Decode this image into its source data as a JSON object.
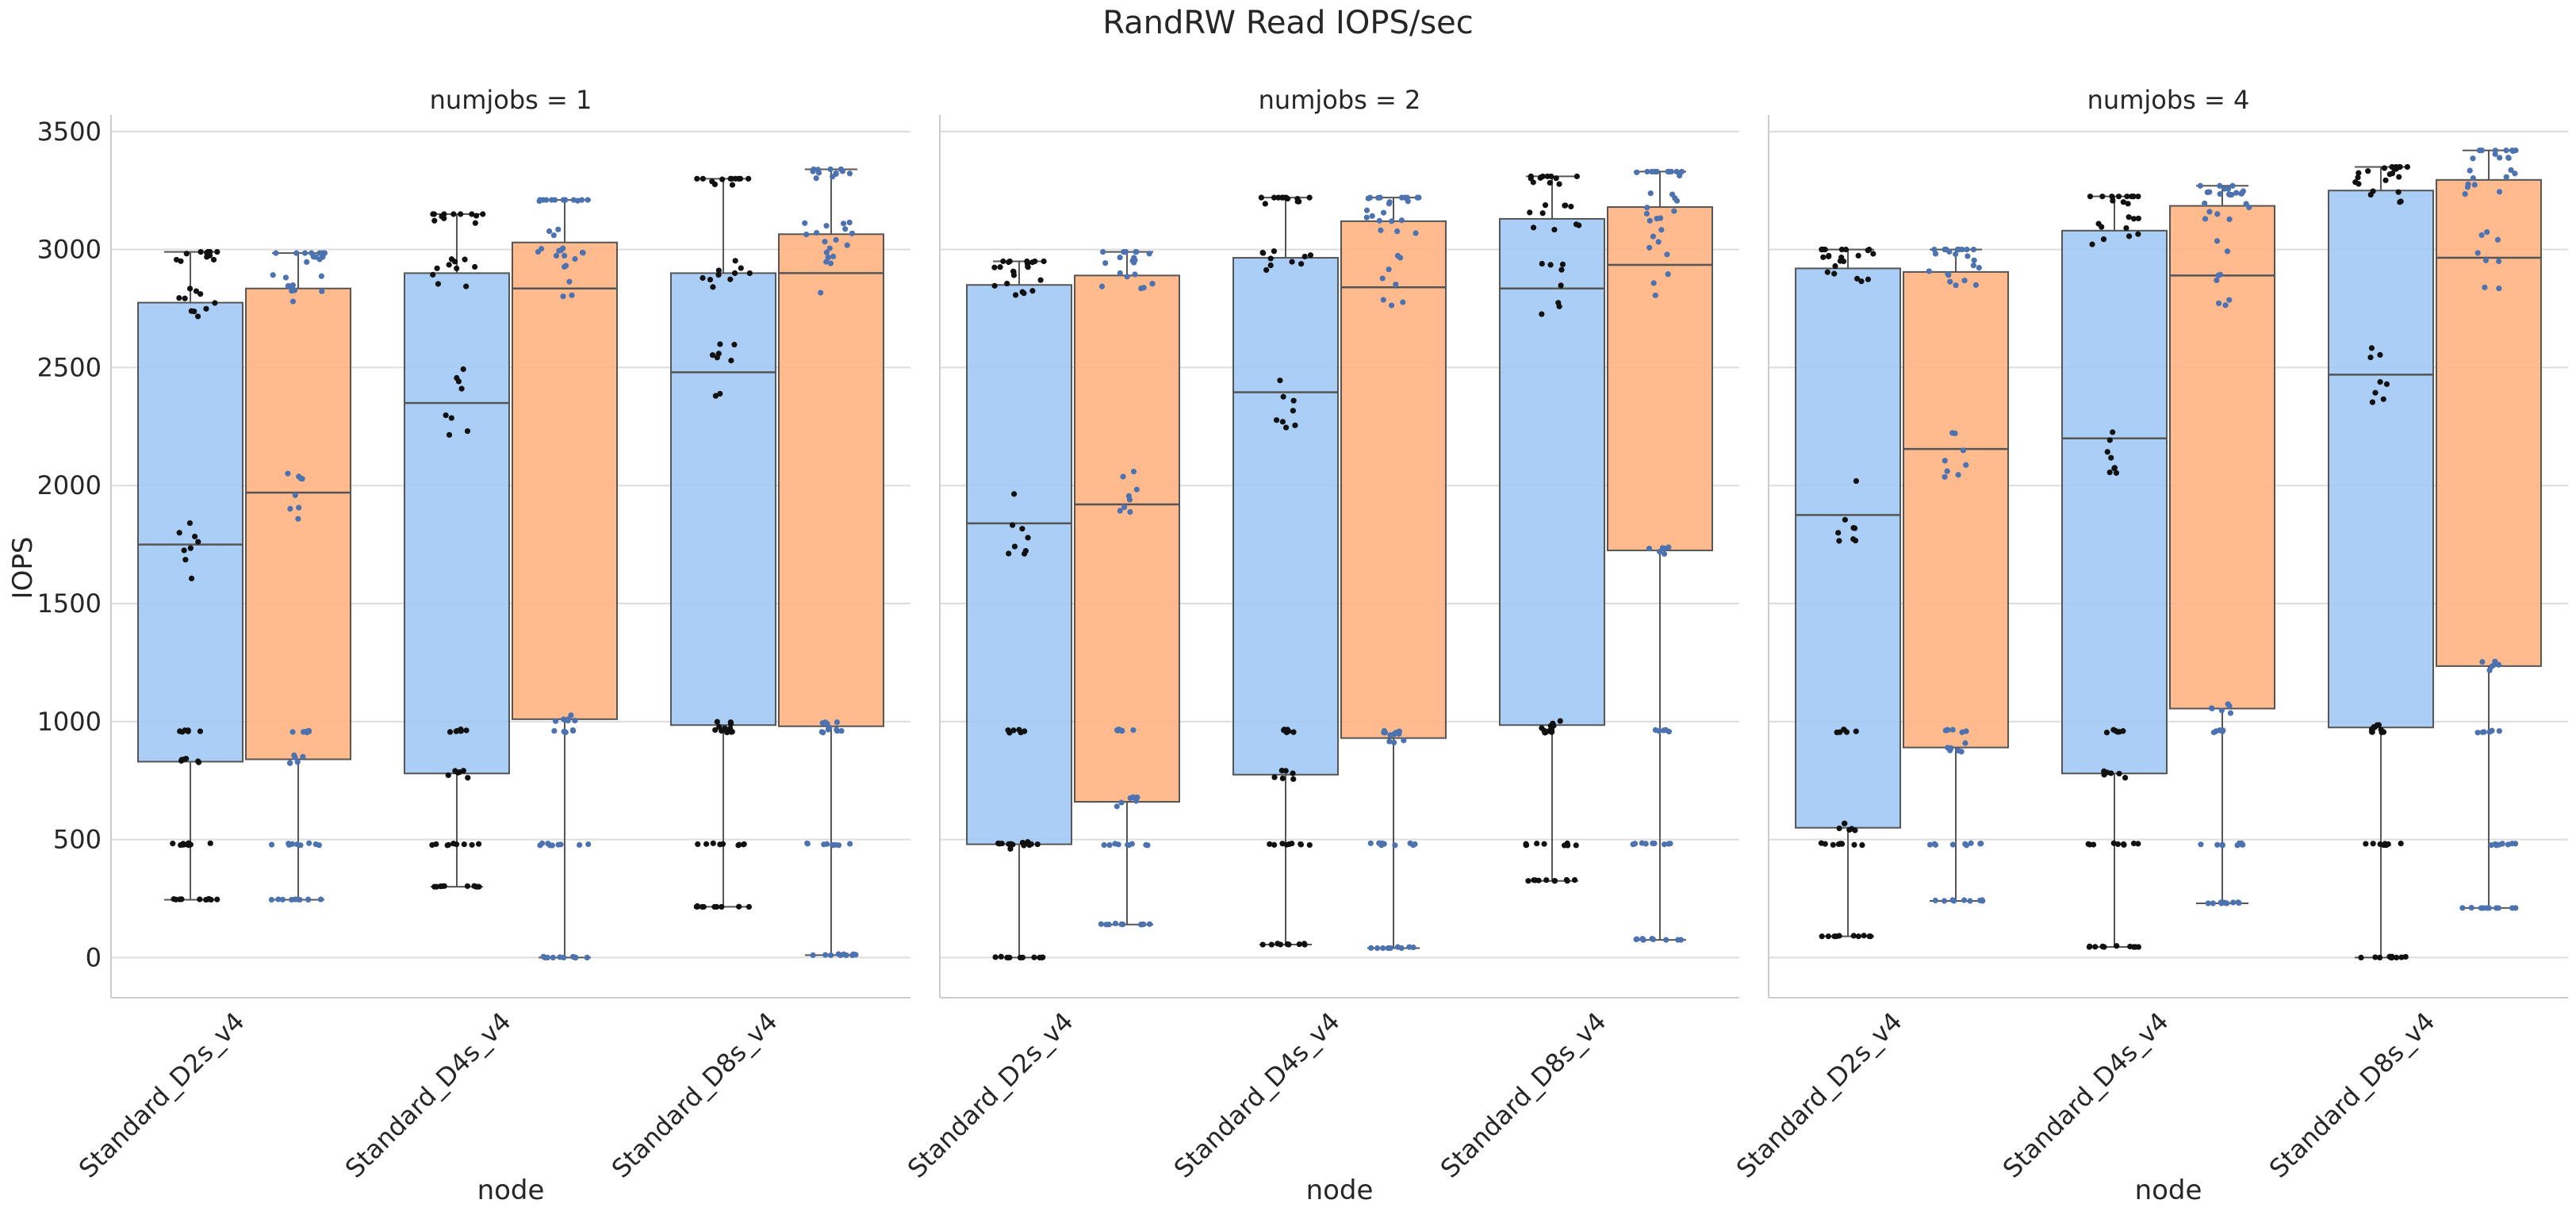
{
  "chart_data": {
    "type": "box",
    "title": "RandRW Read IOPS/sec",
    "ylabel": "IOPS",
    "xlabel": "node",
    "ylim": [
      -170,
      3570
    ],
    "yticks": [
      0,
      500,
      1000,
      1500,
      2000,
      2500,
      3000,
      3500
    ],
    "categories": [
      "Standard_D2s_v4",
      "Standard_D4s_v4",
      "Standard_D8s_v4"
    ],
    "grid": "horizontal",
    "colors": {
      "box_blue": "#a1c9f4",
      "box_orange": "#ffb482",
      "dots_black": "#111111",
      "dots_blue": "#4c72b0",
      "box_edge": "#555555",
      "grid": "#dddddd"
    },
    "panels": [
      {
        "title": "numjobs = 1",
        "groups": [
          {
            "category": "Standard_D2s_v4",
            "boxes": [
              {
                "color": "blue",
                "whisker_low": 245,
                "q1": 830,
                "median": 1750,
                "q3": 2775,
                "whisker_high": 2990
              },
              {
                "color": "orange",
                "whisker_low": 245,
                "q1": 840,
                "median": 1970,
                "q3": 2835,
                "whisker_high": 2985
              }
            ]
          },
          {
            "category": "Standard_D4s_v4",
            "boxes": [
              {
                "color": "blue",
                "whisker_low": 300,
                "q1": 780,
                "median": 2350,
                "q3": 2900,
                "whisker_high": 3150
              },
              {
                "color": "orange",
                "whisker_low": 0,
                "q1": 1010,
                "median": 2835,
                "q3": 3030,
                "whisker_high": 3210
              }
            ]
          },
          {
            "category": "Standard_D8s_v4",
            "boxes": [
              {
                "color": "blue",
                "whisker_low": 215,
                "q1": 985,
                "median": 2480,
                "q3": 2900,
                "whisker_high": 3300
              },
              {
                "color": "orange",
                "whisker_low": 10,
                "q1": 980,
                "median": 2900,
                "q3": 3065,
                "whisker_high": 3340
              }
            ]
          }
        ]
      },
      {
        "title": "numjobs = 2",
        "groups": [
          {
            "category": "Standard_D2s_v4",
            "boxes": [
              {
                "color": "blue",
                "whisker_low": 0,
                "q1": 480,
                "median": 1840,
                "q3": 2850,
                "whisker_high": 2950
              },
              {
                "color": "orange",
                "whisker_low": 140,
                "q1": 660,
                "median": 1920,
                "q3": 2890,
                "whisker_high": 2990
              }
            ]
          },
          {
            "category": "Standard_D4s_v4",
            "boxes": [
              {
                "color": "blue",
                "whisker_low": 55,
                "q1": 775,
                "median": 2395,
                "q3": 2965,
                "whisker_high": 3220
              },
              {
                "color": "orange",
                "whisker_low": 40,
                "q1": 930,
                "median": 2840,
                "q3": 3120,
                "whisker_high": 3220
              }
            ]
          },
          {
            "category": "Standard_D8s_v4",
            "boxes": [
              {
                "color": "blue",
                "whisker_low": 325,
                "q1": 985,
                "median": 2835,
                "q3": 3130,
                "whisker_high": 3310
              },
              {
                "color": "orange",
                "whisker_low": 75,
                "q1": 1725,
                "median": 2935,
                "q3": 3180,
                "whisker_high": 3330
              }
            ]
          }
        ]
      },
      {
        "title": "numjobs = 4",
        "groups": [
          {
            "category": "Standard_D2s_v4",
            "boxes": [
              {
                "color": "blue",
                "whisker_low": 90,
                "q1": 550,
                "median": 1875,
                "q3": 2920,
                "whisker_high": 3000
              },
              {
                "color": "orange",
                "whisker_low": 240,
                "q1": 890,
                "median": 2155,
                "q3": 2905,
                "whisker_high": 3000
              }
            ]
          },
          {
            "category": "Standard_D4s_v4",
            "boxes": [
              {
                "color": "blue",
                "whisker_low": 45,
                "q1": 780,
                "median": 2200,
                "q3": 3080,
                "whisker_high": 3225
              },
              {
                "color": "orange",
                "whisker_low": 230,
                "q1": 1055,
                "median": 2890,
                "q3": 3185,
                "whisker_high": 3270
              }
            ]
          },
          {
            "category": "Standard_D8s_v4",
            "boxes": [
              {
                "color": "blue",
                "whisker_low": 0,
                "q1": 975,
                "median": 2470,
                "q3": 3250,
                "whisker_high": 3350
              },
              {
                "color": "orange",
                "whisker_low": 210,
                "q1": 1235,
                "median": 2965,
                "q3": 3295,
                "whisker_high": 3420
              }
            ]
          }
        ]
      }
    ]
  }
}
